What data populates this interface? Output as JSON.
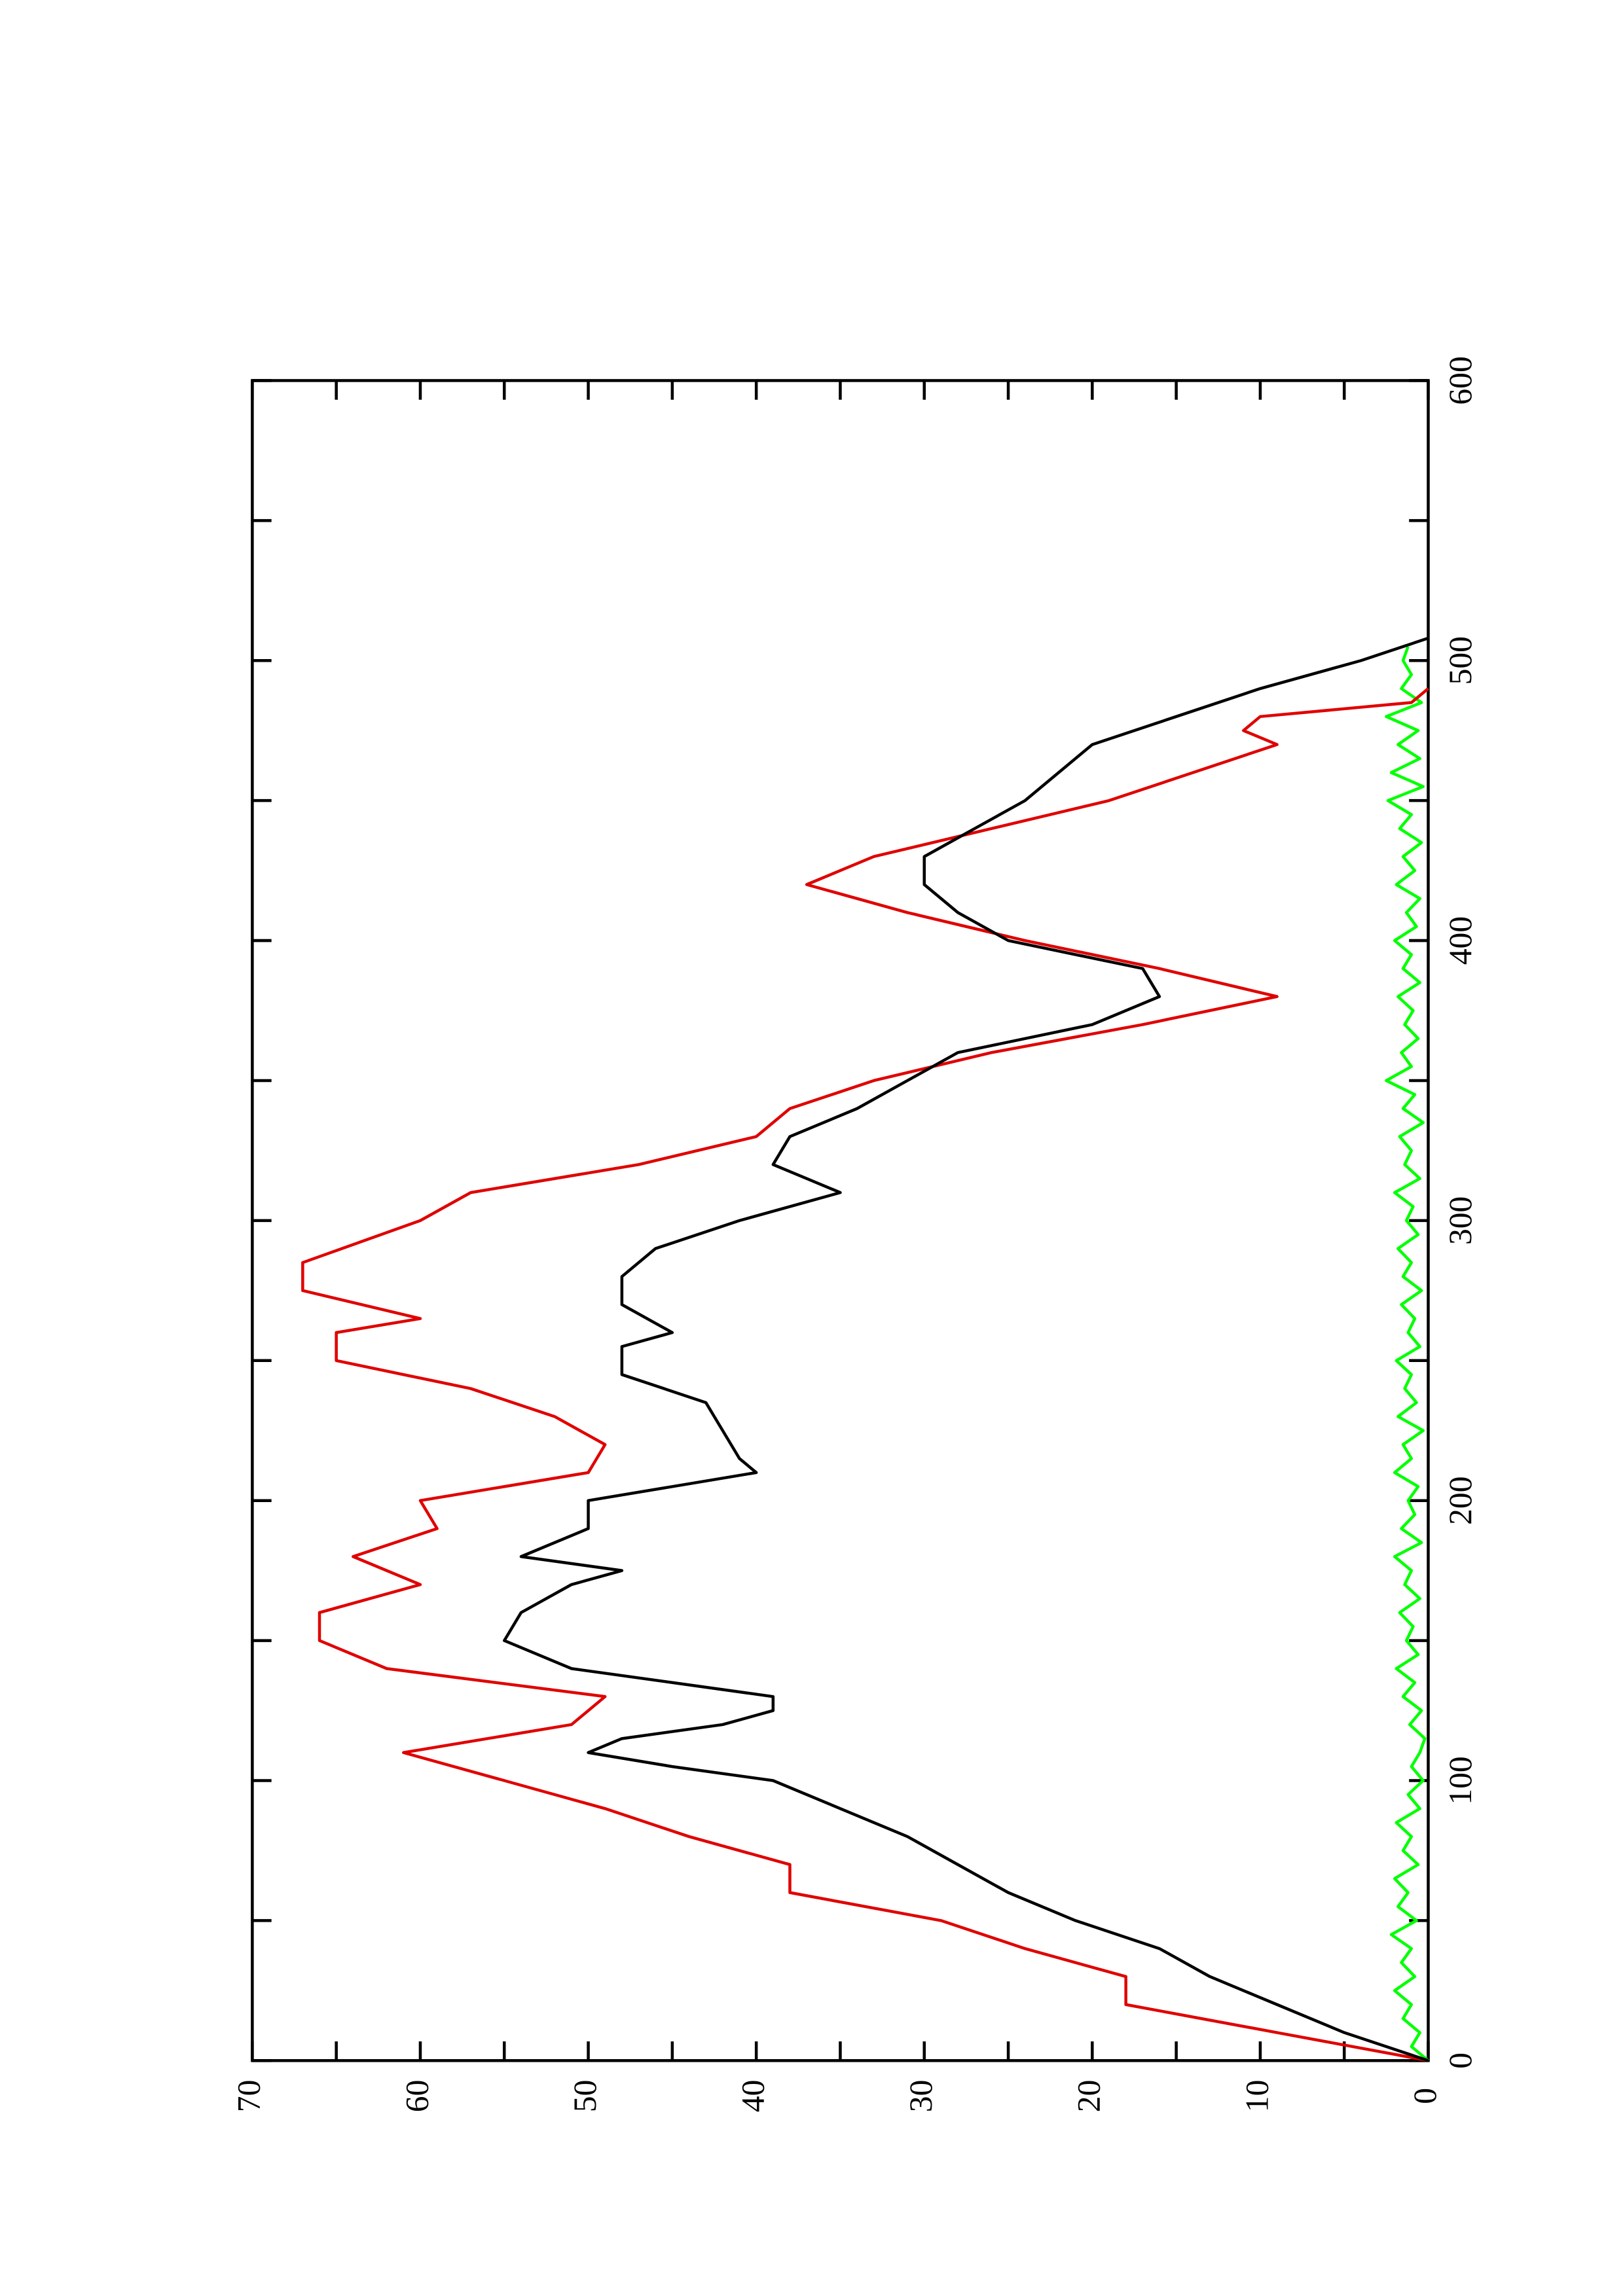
{
  "chart_data": {
    "type": "line",
    "xlim": [
      0,
      600
    ],
    "xticks": [
      0,
      100,
      200,
      300,
      400,
      500,
      600
    ],
    "xminorticks": [
      50,
      150,
      250,
      350,
      450,
      550
    ],
    "ylim": [
      0,
      70
    ],
    "yticks": [
      0,
      10,
      20,
      30,
      40,
      50,
      60,
      70
    ],
    "yminorticks": [
      5,
      15,
      25,
      35,
      45,
      55,
      65
    ],
    "series": [
      {
        "color": "#00ff00",
        "x": [
          0,
          5,
          10,
          15,
          20,
          25,
          30,
          35,
          40,
          45,
          50,
          55,
          60,
          65,
          70,
          75,
          80,
          85,
          90,
          95,
          100,
          105,
          110,
          115,
          120,
          125,
          130,
          135,
          140,
          145,
          150,
          155,
          160,
          165,
          170,
          175,
          180,
          185,
          190,
          195,
          200,
          205,
          210,
          215,
          220,
          225,
          230,
          235,
          240,
          245,
          250,
          255,
          260,
          265,
          270,
          275,
          280,
          285,
          290,
          295,
          300,
          305,
          310,
          315,
          320,
          325,
          330,
          335,
          340,
          345,
          350,
          355,
          360,
          365,
          370,
          375,
          380,
          385,
          390,
          395,
          400,
          405,
          410,
          415,
          420,
          425,
          430,
          435,
          440,
          445,
          450,
          455,
          460,
          465,
          470,
          475,
          480,
          485,
          490,
          495,
          500,
          505
        ],
        "values": [
          0,
          1,
          0.5,
          1.5,
          1,
          2,
          0.8,
          1.6,
          1,
          2.2,
          0.7,
          1.8,
          1.2,
          2,
          0.6,
          1.5,
          1,
          1.9,
          0.5,
          1.2,
          0.3,
          1,
          0.5,
          0.2,
          1.1,
          0.4,
          1.5,
          0.8,
          1.9,
          0.6,
          1.3,
          0.9,
          1.7,
          0.5,
          1.4,
          1,
          2,
          0.4,
          1.6,
          0.8,
          1.2,
          0.6,
          2,
          1,
          1.5,
          0.3,
          1.8,
          0.7,
          1.4,
          1,
          1.9,
          0.5,
          1.2,
          0.8,
          1.6,
          0.4,
          1.5,
          1,
          1.8,
          0.6,
          1.3,
          0.9,
          2,
          0.5,
          1.4,
          1,
          1.7,
          0.3,
          1.5,
          0.8,
          2.5,
          1,
          1.6,
          0.6,
          1.4,
          0.9,
          1.8,
          0.5,
          1.5,
          1,
          2,
          0.7,
          1.3,
          0.5,
          1.9,
          0.8,
          1.5,
          0.4,
          1.7,
          1,
          2.4,
          0.3,
          2.2,
          0.5,
          1.8,
          0.6,
          2.5,
          0.4,
          1.6,
          1,
          1.5,
          1.2
        ]
      },
      {
        "color": "#e00000",
        "x": [
          0,
          10,
          20,
          30,
          40,
          50,
          60,
          70,
          80,
          90,
          100,
          110,
          120,
          130,
          140,
          150,
          160,
          170,
          180,
          190,
          200,
          210,
          220,
          230,
          240,
          250,
          260,
          265,
          275,
          285,
          300,
          310,
          320,
          330,
          340,
          350,
          360,
          370,
          380,
          390,
          400,
          410,
          420,
          430,
          440,
          450,
          460,
          470,
          475,
          480,
          485,
          490
        ],
        "values": [
          0,
          9,
          18,
          18,
          24,
          29,
          38,
          38,
          44,
          49,
          55,
          61,
          51,
          49,
          62,
          66,
          66,
          60,
          64,
          59,
          60,
          50,
          49,
          52,
          57,
          65,
          65,
          60,
          67,
          67,
          60,
          57,
          47,
          40,
          38,
          33,
          26,
          17,
          9,
          16,
          24,
          31,
          37,
          33,
          26,
          19,
          14,
          9,
          11,
          10,
          1,
          0
        ]
      },
      {
        "color": "#000000",
        "x": [
          0,
          10,
          20,
          30,
          40,
          50,
          60,
          70,
          80,
          90,
          100,
          105,
          110,
          115,
          120,
          125,
          130,
          135,
          140,
          150,
          160,
          170,
          175,
          180,
          190,
          200,
          210,
          215,
          225,
          235,
          245,
          255,
          260,
          270,
          280,
          290,
          300,
          310,
          315,
          320,
          330,
          340,
          350,
          360,
          370,
          380,
          390,
          400,
          410,
          420,
          430,
          440,
          450,
          460,
          470,
          480,
          490,
          500,
          508
        ],
        "values": [
          0,
          5,
          9,
          13,
          16,
          21,
          25,
          28,
          31,
          35,
          39,
          45,
          50,
          48,
          42,
          39,
          39,
          45,
          51,
          55,
          54,
          51,
          48,
          54,
          50,
          50,
          40,
          41,
          42,
          43,
          48,
          48,
          45,
          48,
          48,
          46,
          41,
          35,
          37,
          39,
          38,
          34,
          31,
          28,
          20,
          16,
          17,
          25,
          28,
          30,
          30,
          27,
          24,
          22,
          20,
          15,
          10,
          4,
          0
        ]
      }
    ]
  }
}
